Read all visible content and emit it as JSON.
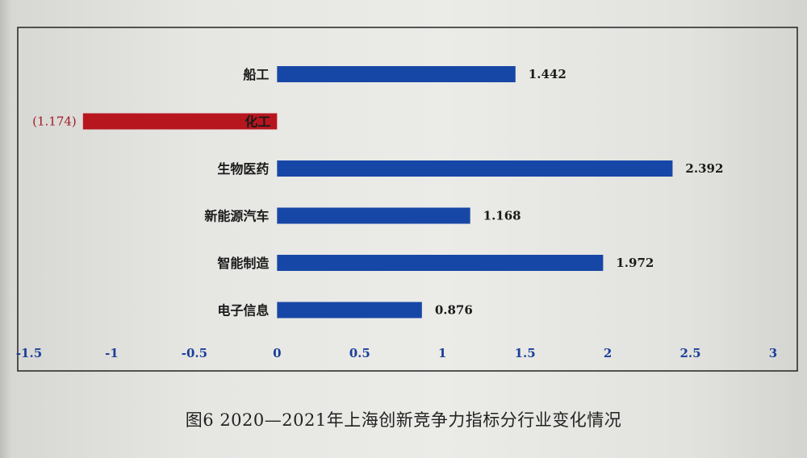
{
  "caption": "图6   2020—2021年上海创新竞争力指标分行业变化情况",
  "colors": {
    "positive": "#1747a6",
    "negative": "#b8161f",
    "frame": "#222222"
  },
  "chart_data": {
    "type": "bar",
    "orientation": "horizontal",
    "title": "",
    "xlabel": "",
    "ylabel": "",
    "xlim": [
      -1.5,
      3
    ],
    "ticks": [
      -1.5,
      -1,
      -0.5,
      0,
      0.5,
      1,
      1.5,
      2,
      2.5,
      3
    ],
    "tick_labels": [
      "-1.5",
      "-1",
      "-0.5",
      "0",
      "0.5",
      "1",
      "1.5",
      "2",
      "2.5",
      "3"
    ],
    "categories": [
      "船工",
      "化工",
      "生物医药",
      "新能源汽车",
      "智能制造",
      "电子信息"
    ],
    "values": [
      1.442,
      -1.174,
      2.392,
      1.168,
      1.972,
      0.876
    ],
    "value_labels": [
      "1.442",
      "(1.174)",
      "2.392",
      "1.168",
      "1.972",
      "0.876"
    ],
    "grid": false,
    "legend": "none"
  }
}
